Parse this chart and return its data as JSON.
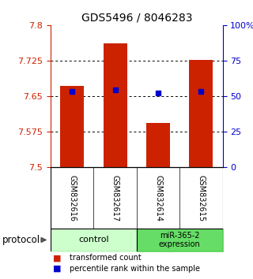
{
  "title": "GDS5496 / 8046283",
  "samples": [
    "GSM832616",
    "GSM832617",
    "GSM832614",
    "GSM832615"
  ],
  "bar_tops": [
    7.672,
    7.762,
    7.593,
    7.727
  ],
  "bar_bottom": 7.5,
  "percentile_values": [
    7.661,
    7.663,
    7.657,
    7.661
  ],
  "ylim_left": [
    7.5,
    7.8
  ],
  "ylim_right": [
    0,
    100
  ],
  "yticks_left": [
    7.5,
    7.575,
    7.65,
    7.725,
    7.8
  ],
  "yticks_right": [
    0,
    25,
    50,
    75,
    100
  ],
  "gridline_y": [
    7.725,
    7.65,
    7.575
  ],
  "bar_color": "#cc2200",
  "percentile_color": "#0000cc",
  "bar_width": 0.55,
  "group_colors": [
    "#ccffcc",
    "#66dd66"
  ],
  "legend_items": [
    {
      "label": "transformed count",
      "color": "#cc2200"
    },
    {
      "label": "percentile rank within the sample",
      "color": "#0000cc"
    }
  ],
  "protocol_label": "protocol",
  "background_color": "#ffffff",
  "plot_bg_color": "#ffffff",
  "sample_label_bg": "#c8c8c8",
  "title_fontsize": 10,
  "axis_fontsize": 8,
  "sample_fontsize": 7,
  "proto_fontsize": 8,
  "legend_fontsize": 7
}
